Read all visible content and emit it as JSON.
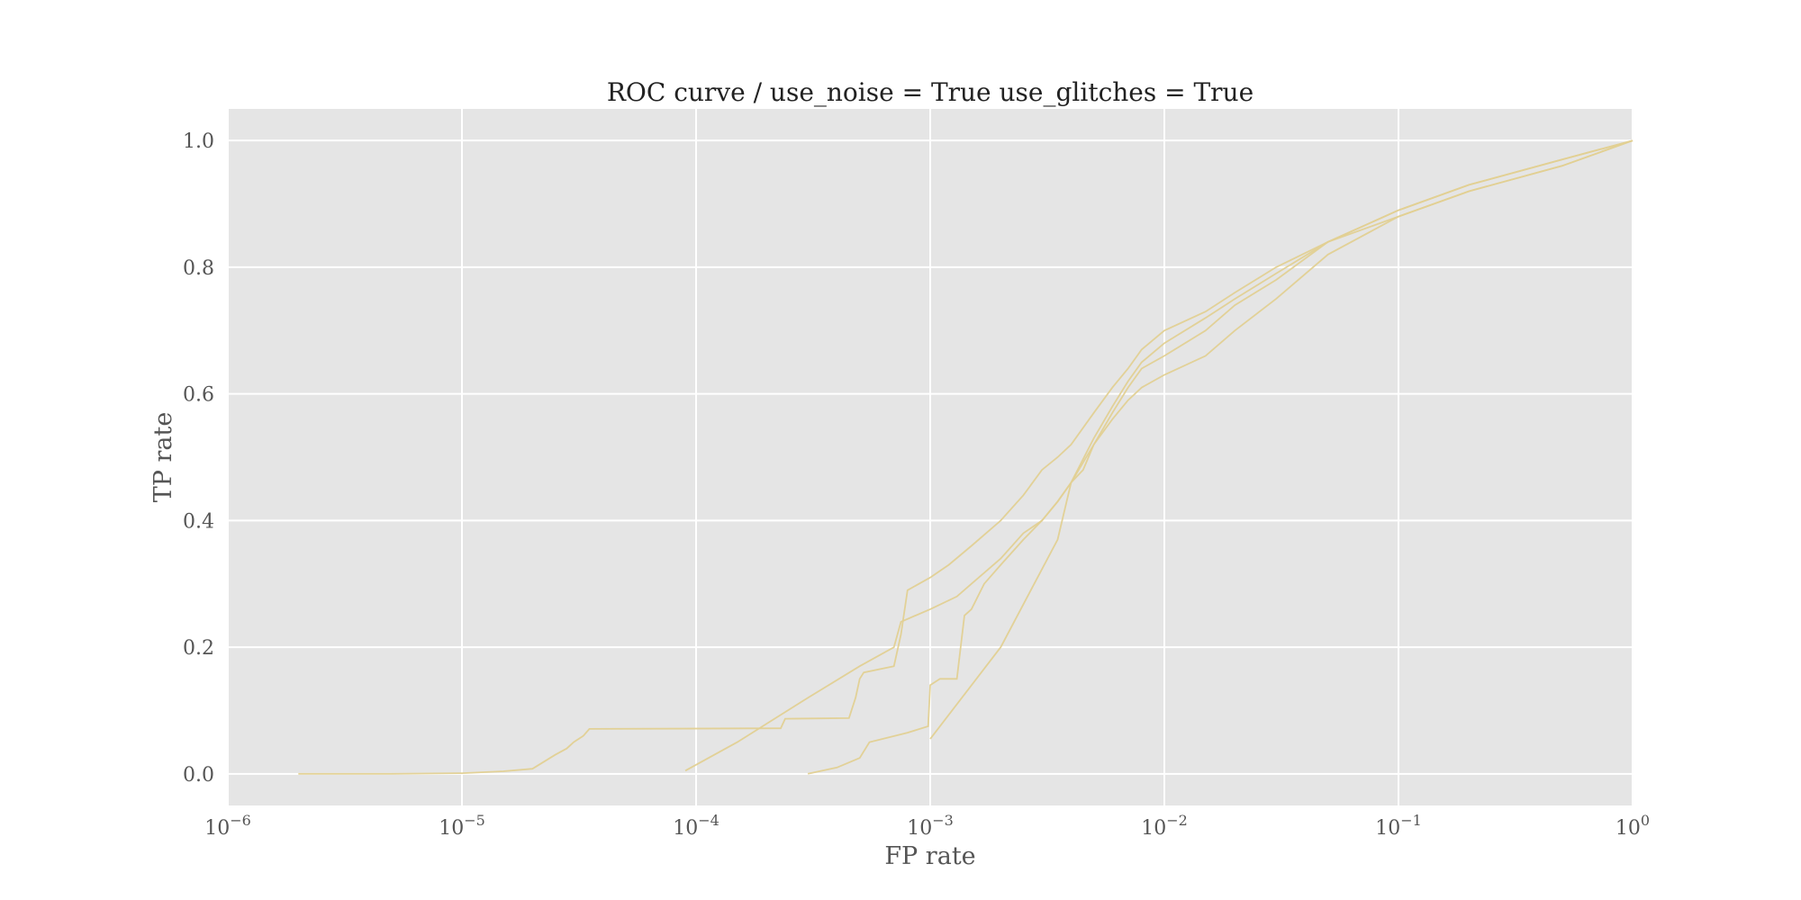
{
  "chart_data": {
    "type": "line",
    "title": "ROC curve / use_noise = True  use_glitches = True",
    "xlabel": "FP rate",
    "ylabel": "TP rate",
    "xscale": "log",
    "xlim": [
      1e-06,
      1
    ],
    "ylim": [
      -0.05,
      1.05
    ],
    "grid": true,
    "background_color": "#e5e5e5",
    "grid_color": "#ffffff",
    "line_color": "#e2d092",
    "x_ticks": [
      {
        "value": 1e-06,
        "base": "10",
        "exp": "−6"
      },
      {
        "value": 1e-05,
        "base": "10",
        "exp": "−5"
      },
      {
        "value": 0.0001,
        "base": "10",
        "exp": "−4"
      },
      {
        "value": 0.001,
        "base": "10",
        "exp": "−3"
      },
      {
        "value": 0.01,
        "base": "10",
        "exp": "−2"
      },
      {
        "value": 0.1,
        "base": "10",
        "exp": "−1"
      },
      {
        "value": 1,
        "base": "10",
        "exp": "0"
      }
    ],
    "y_ticks": [
      {
        "value": 0.0,
        "label": "0.0"
      },
      {
        "value": 0.2,
        "label": "0.2"
      },
      {
        "value": 0.4,
        "label": "0.4"
      },
      {
        "value": 0.6,
        "label": "0.6"
      },
      {
        "value": 0.8,
        "label": "0.8"
      },
      {
        "value": 1.0,
        "label": "1.0"
      }
    ],
    "series": [
      {
        "x": [
          2e-06,
          5e-06,
          1e-05,
          1.5e-05,
          2e-05,
          2.5e-05,
          2.8e-05,
          3e-05,
          3.3e-05,
          3.5e-05,
          0.00023,
          0.00024,
          0.00045,
          0.00048,
          0.0005,
          0.00052,
          0.0007,
          0.00075,
          0.0008,
          0.001,
          0.0012,
          0.0015,
          0.002,
          0.0025,
          0.003,
          0.0035,
          0.004,
          0.005,
          0.006,
          0.007,
          0.008,
          0.01,
          0.015,
          0.02,
          0.03,
          0.05,
          0.1,
          0.2,
          0.5,
          1
        ],
        "y": [
          0.0,
          0.0,
          0.001,
          0.004,
          0.008,
          0.03,
          0.04,
          0.05,
          0.06,
          0.071,
          0.072,
          0.087,
          0.088,
          0.12,
          0.15,
          0.16,
          0.17,
          0.22,
          0.29,
          0.31,
          0.33,
          0.36,
          0.4,
          0.44,
          0.48,
          0.5,
          0.52,
          0.57,
          0.61,
          0.64,
          0.67,
          0.7,
          0.73,
          0.76,
          0.8,
          0.84,
          0.89,
          0.93,
          0.97,
          1.0
        ]
      },
      {
        "x": [
          9e-05,
          0.00015,
          0.0003,
          0.0005,
          0.0007,
          0.00075,
          0.001,
          0.0013,
          0.0015,
          0.002,
          0.0025,
          0.003,
          0.0035,
          0.004,
          0.005,
          0.006,
          0.007,
          0.008,
          0.01,
          0.015,
          0.02,
          0.03,
          0.05,
          0.1,
          0.2,
          0.5,
          1
        ],
        "y": [
          0.005,
          0.05,
          0.12,
          0.17,
          0.2,
          0.24,
          0.26,
          0.28,
          0.3,
          0.34,
          0.38,
          0.4,
          0.43,
          0.46,
          0.53,
          0.58,
          0.62,
          0.65,
          0.68,
          0.72,
          0.75,
          0.79,
          0.84,
          0.89,
          0.93,
          0.97,
          1.0
        ]
      },
      {
        "x": [
          0.0003,
          0.0004,
          0.0005,
          0.00055,
          0.0008,
          0.00098,
          0.001,
          0.0011,
          0.0013,
          0.0014,
          0.0015,
          0.0017,
          0.002,
          0.0025,
          0.003,
          0.0035,
          0.004,
          0.005,
          0.006,
          0.007,
          0.008,
          0.01,
          0.015,
          0.02,
          0.03,
          0.05,
          0.1,
          0.2,
          0.5,
          1
        ],
        "y": [
          0.0,
          0.01,
          0.025,
          0.05,
          0.065,
          0.075,
          0.14,
          0.15,
          0.15,
          0.25,
          0.26,
          0.3,
          0.33,
          0.37,
          0.4,
          0.43,
          0.46,
          0.52,
          0.57,
          0.61,
          0.64,
          0.66,
          0.7,
          0.74,
          0.78,
          0.84,
          0.88,
          0.92,
          0.96,
          1.0
        ]
      },
      {
        "x": [
          0.001,
          0.002,
          0.0035,
          0.004,
          0.0045,
          0.005,
          0.006,
          0.007,
          0.008,
          0.01,
          0.015,
          0.02,
          0.03,
          0.05,
          0.1,
          0.2,
          0.5,
          1
        ],
        "y": [
          0.055,
          0.2,
          0.37,
          0.46,
          0.48,
          0.52,
          0.56,
          0.59,
          0.61,
          0.63,
          0.66,
          0.7,
          0.75,
          0.82,
          0.88,
          0.92,
          0.96,
          1.0
        ]
      }
    ]
  }
}
